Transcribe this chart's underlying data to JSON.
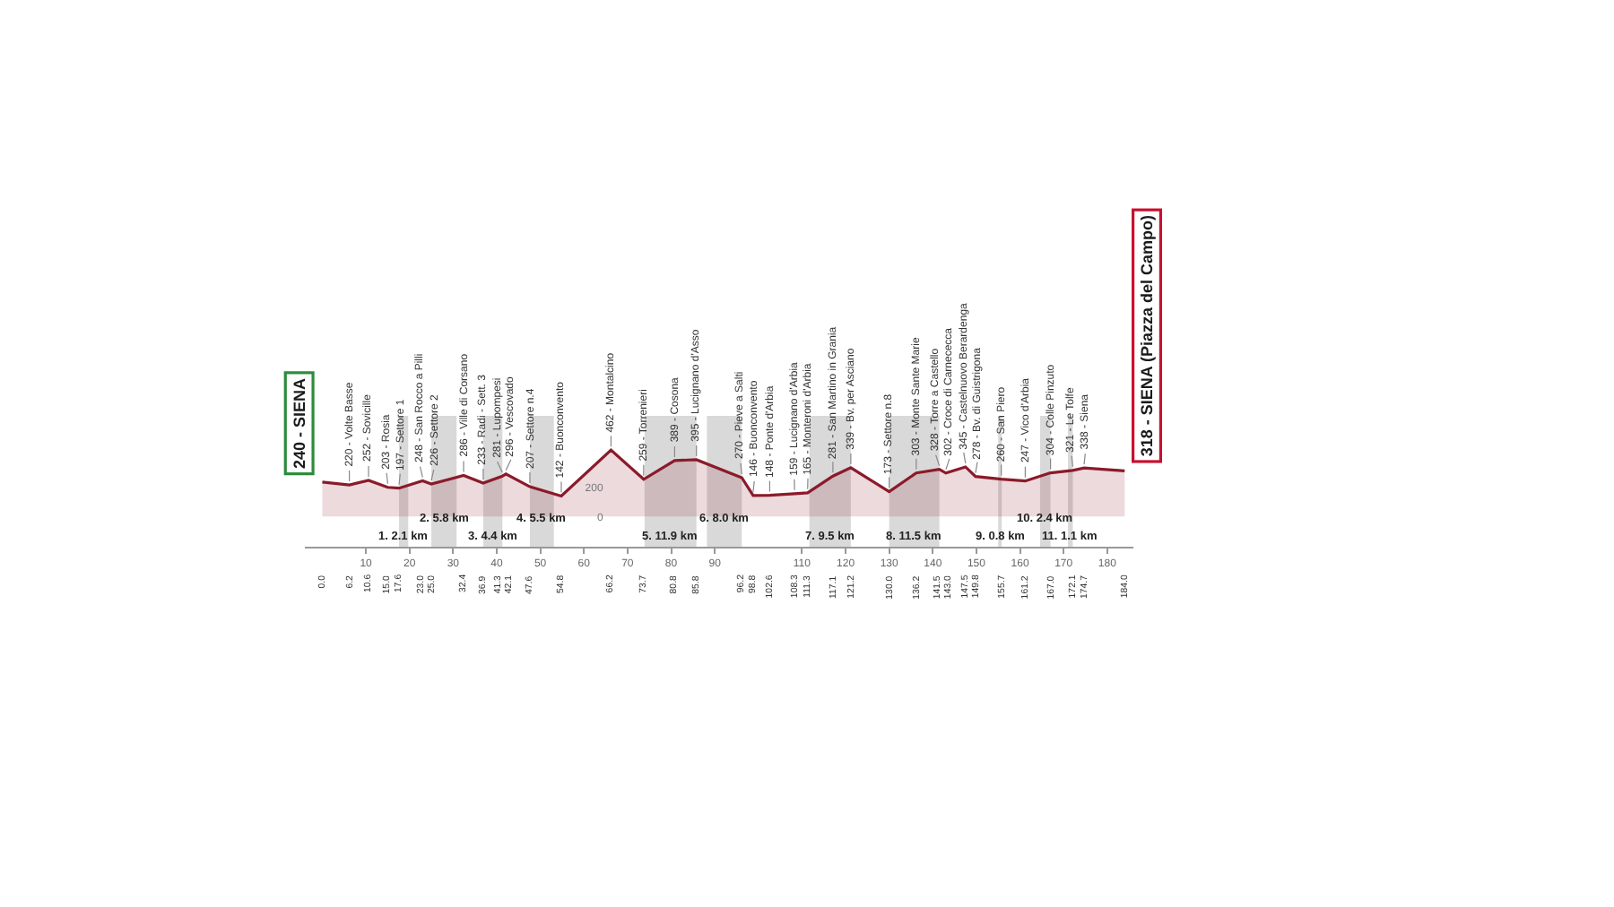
{
  "chart_data": {
    "type": "area",
    "x": [
      0,
      6.2,
      10.6,
      15.0,
      17.6,
      23.0,
      25.0,
      32.4,
      36.9,
      41.3,
      42.1,
      47.6,
      54.8,
      66.2,
      73.7,
      80.8,
      85.8,
      96.2,
      98.8,
      102.6,
      108.3,
      111.3,
      117.1,
      121.2,
      130.0,
      136.2,
      141.5,
      143.0,
      147.5,
      149.8,
      155.7,
      161.2,
      167.0,
      172.1,
      174.7,
      184.0
    ],
    "series": [
      {
        "color": "#8b1a2a",
        "values": [
          240,
          220,
          252,
          203,
          197,
          248,
          226,
          286,
          233,
          281,
          296,
          207,
          142,
          462,
          259,
          389,
          395,
          270,
          146,
          148,
          159,
          165,
          281,
          339,
          173,
          303,
          328,
          302,
          345,
          278,
          260,
          247,
          304,
          321,
          338,
          318
        ]
      }
    ],
    "xlim": [
      -4,
      186
    ],
    "xticks": [
      10,
      20,
      30,
      40,
      50,
      60,
      70,
      80,
      90,
      110,
      120,
      130,
      140,
      150,
      160,
      170,
      180
    ],
    "x2lim": [
      -4,
      186
    ],
    "x2ticks": [
      {
        "value": 0,
        "label": "0.0"
      },
      {
        "value": 6.2,
        "label": "6.2"
      },
      {
        "value": 10.6,
        "label": "10.6"
      },
      {
        "value": 15,
        "label": "15.0"
      },
      {
        "value": 17.6,
        "label": "17.6"
      },
      {
        "value": 23,
        "label": "23.0"
      },
      {
        "value": 25,
        "label": "25.0"
      },
      {
        "value": 32.4,
        "label": "32.4"
      },
      {
        "value": 36.9,
        "label": "36.9"
      },
      {
        "value": 41.3,
        "label": "41.3"
      },
      {
        "value": 42.1,
        "label": "42.1"
      },
      {
        "value": 47.6,
        "label": "47.6"
      },
      {
        "value": 54.8,
        "label": "54.8"
      },
      {
        "value": 66.2,
        "label": "66.2"
      },
      {
        "value": 73.7,
        "label": "73.7"
      },
      {
        "value": 80.8,
        "label": "80.8"
      },
      {
        "value": 85.8,
        "label": "85.8"
      },
      {
        "value": 96.2,
        "label": "96.2"
      },
      {
        "value": 98.8,
        "label": "98.8"
      },
      {
        "value": 102.6,
        "label": "102.6"
      },
      {
        "value": 108.3,
        "label": "108.3"
      },
      {
        "value": 111.3,
        "label": "111.3"
      },
      {
        "value": 117.1,
        "label": "117.1"
      },
      {
        "value": 121.2,
        "label": "121.2"
      },
      {
        "value": 130,
        "label": "130.0"
      },
      {
        "value": 136.2,
        "label": "136.2"
      },
      {
        "value": 141.5,
        "label": "141.5"
      },
      {
        "value": 143,
        "label": "143.0"
      },
      {
        "value": 147.5,
        "label": "147.5"
      },
      {
        "value": 149.8,
        "label": "149.8"
      },
      {
        "value": 155.7,
        "label": "155.7"
      },
      {
        "value": 161.2,
        "label": "161.2"
      },
      {
        "value": 167,
        "label": "167.0"
      },
      {
        "value": 172.1,
        "label": "172.1"
      },
      {
        "value": 174.7,
        "label": "174.7"
      },
      {
        "value": 184,
        "label": "184.0"
      }
    ],
    "ylim": [
      -210,
      700
    ],
    "yticks": [
      0,
      200
    ],
    "bands": [
      {
        "axis": "x",
        "from": 17.6,
        "to": 19.7,
        "label": "1. 2.1 km",
        "color": "#c9c9c9"
      },
      {
        "axis": "x",
        "from": 25.0,
        "to": 30.8,
        "label": "2. 5.8 km",
        "color": "#c9c9c9"
      },
      {
        "axis": "x",
        "from": 36.9,
        "to": 41.3,
        "label": "3. 4.4 km",
        "color": "#c9c9c9"
      },
      {
        "axis": "x",
        "from": 47.6,
        "to": 53.1,
        "label": "4. 5.5 km",
        "color": "#c9c9c9"
      },
      {
        "axis": "x",
        "from": 73.9,
        "to": 85.8,
        "label": "5. 11.9 km",
        "color": "#c9c9c9"
      },
      {
        "axis": "x",
        "from": 88.2,
        "to": 96.2,
        "label": "6. 8.0 km",
        "color": "#c9c9c9"
      },
      {
        "axis": "x",
        "from": 111.7,
        "to": 121.2,
        "label": "7. 9.5 km",
        "color": "#c9c9c9"
      },
      {
        "axis": "x",
        "from": 130.0,
        "to": 141.5,
        "label": "8. 11.5 km",
        "color": "#c9c9c9"
      },
      {
        "axis": "x",
        "from": 155.0,
        "to": 155.8,
        "label": "9. 0.8 km",
        "color": "#c9c9c9"
      },
      {
        "axis": "x",
        "from": 164.6,
        "to": 167.0,
        "label": "10. 2.4 km",
        "color": "#c9c9c9"
      },
      {
        "axis": "x",
        "from": 171.0,
        "to": 172.1,
        "label": "11. 1.1 km",
        "color": "#c9c9c9"
      }
    ],
    "annotations": [
      {
        "text": "240 - SIENA",
        "x": 0,
        "y": 240
      },
      {
        "text": "220 - Volte Basse",
        "x": 6.2,
        "y": 220
      },
      {
        "text": "252 - Sovicille",
        "x": 10.6,
        "y": 252
      },
      {
        "text": "203 - Rosia",
        "x": 15.0,
        "y": 203
      },
      {
        "text": "197 - Settore 1",
        "x": 17.6,
        "y": 197
      },
      {
        "text": "248 - San Rocco a Pilli",
        "x": 23.0,
        "y": 248
      },
      {
        "text": "226 - Settore 2",
        "x": 25.0,
        "y": 226
      },
      {
        "text": "286 - Ville di Corsano",
        "x": 32.4,
        "y": 286
      },
      {
        "text": "233 - Radi - Sett. 3",
        "x": 36.9,
        "y": 233
      },
      {
        "text": "281 - Lupompesi",
        "x": 41.3,
        "y": 281
      },
      {
        "text": "296 - Vescovado",
        "x": 42.1,
        "y": 296
      },
      {
        "text": "207 - Settore n.4",
        "x": 47.6,
        "y": 207
      },
      {
        "text": "142 - Buonconvento",
        "x": 54.8,
        "y": 142
      },
      {
        "text": "462 - Montalcino",
        "x": 66.2,
        "y": 462
      },
      {
        "text": "259 - Torrenieri",
        "x": 73.7,
        "y": 259
      },
      {
        "text": "389 - Cosona",
        "x": 80.8,
        "y": 389
      },
      {
        "text": "395 - Lucignano d'Asso",
        "x": 85.8,
        "y": 395
      },
      {
        "text": "270 - Pieve a Salti",
        "x": 96.2,
        "y": 270
      },
      {
        "text": "146 - Buonconvento",
        "x": 98.8,
        "y": 146
      },
      {
        "text": "148 - Ponte d'Arbia",
        "x": 102.6,
        "y": 148
      },
      {
        "text": "159 - Lucignano d'Arbia",
        "x": 108.3,
        "y": 159
      },
      {
        "text": "165 - Monteroni d'Arbia",
        "x": 111.3,
        "y": 165
      },
      {
        "text": "281 - San Martino in Grania",
        "x": 117.1,
        "y": 281
      },
      {
        "text": "339 - Bv. per Asciano",
        "x": 121.2,
        "y": 339
      },
      {
        "text": "173 - Settore n.8",
        "x": 130.0,
        "y": 173
      },
      {
        "text": "303 - Monte Sante Marie",
        "x": 136.2,
        "y": 303
      },
      {
        "text": "328 - Torre a Castello",
        "x": 141.5,
        "y": 328
      },
      {
        "text": "302 - Croce di Carnececca",
        "x": 143.0,
        "y": 302
      },
      {
        "text": "345 - Castelnuovo Berardenga",
        "x": 147.5,
        "y": 345
      },
      {
        "text": "278 - Bv. di Guistrigona",
        "x": 149.8,
        "y": 278
      },
      {
        "text": "260 - San Piero",
        "x": 155.7,
        "y": 260
      },
      {
        "text": "247 - Vico d'Arbia",
        "x": 161.2,
        "y": 247
      },
      {
        "text": "304 - Colle Pinzuto",
        "x": 167.0,
        "y": 304
      },
      {
        "text": "321 - Le Tolfe",
        "x": 172.1,
        "y": 321
      },
      {
        "text": "338 - Siena",
        "x": 174.7,
        "y": 338
      },
      {
        "text": "318 - SIENA (Piazza del Campo)",
        "x": 184.0,
        "y": 318
      }
    ]
  }
}
